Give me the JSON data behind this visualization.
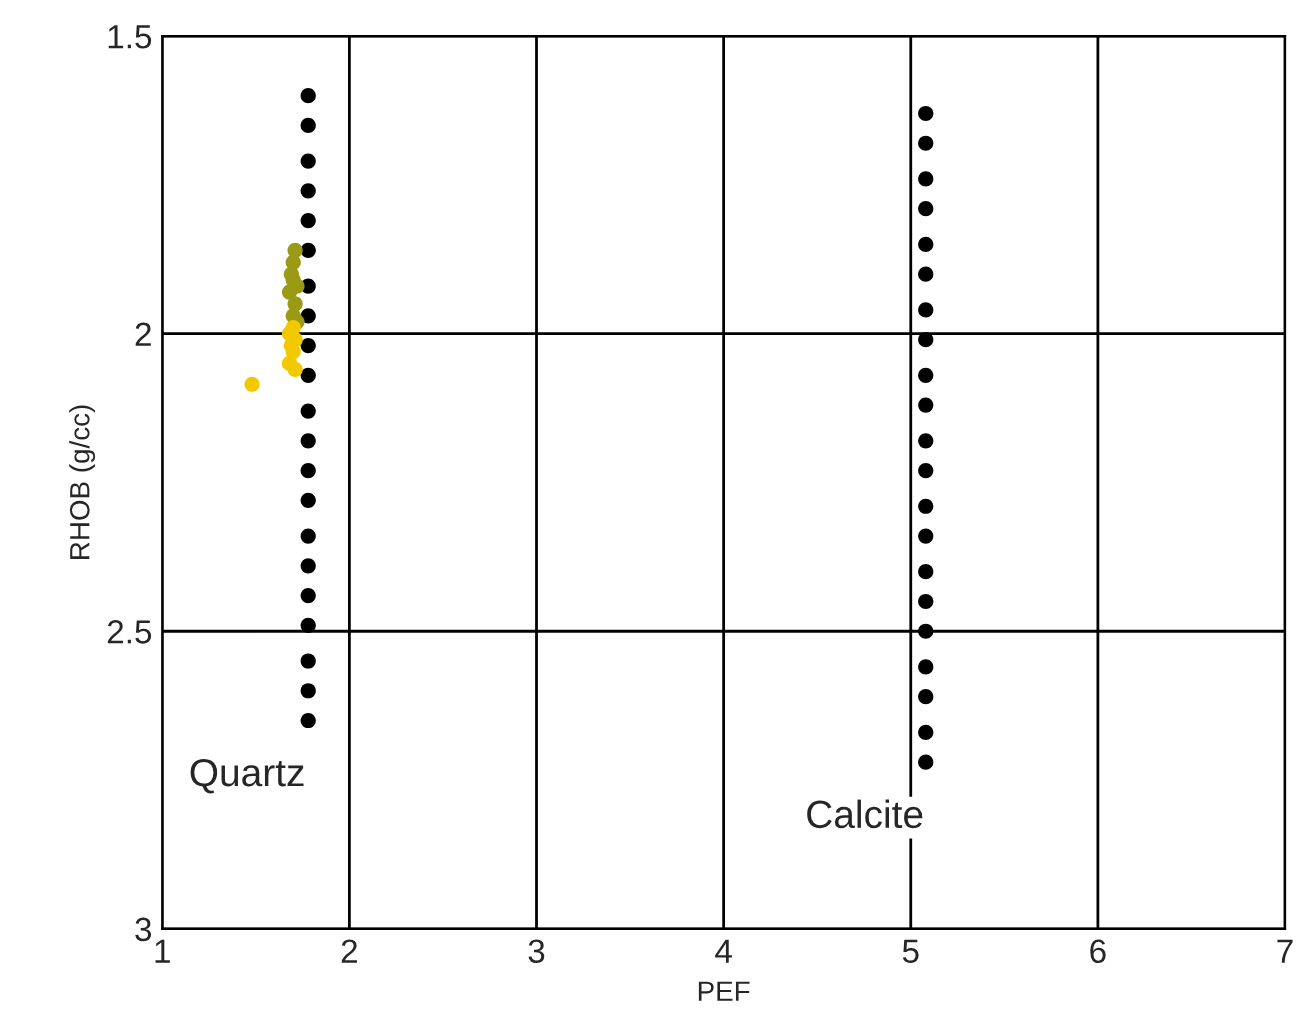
{
  "chart_data": {
    "type": "scatter",
    "xlabel": "PEF",
    "ylabel": "RHOB (g/cc)",
    "xlim": [
      1,
      7
    ],
    "ylim": [
      3,
      1.5
    ],
    "xticks": [
      1,
      2,
      3,
      4,
      5,
      6,
      7
    ],
    "yticks": [
      1.5,
      2,
      2.5,
      3
    ],
    "grid": true,
    "marker": "circle",
    "series": [
      {
        "color": "#000000",
        "x": [
          1.78,
          1.78,
          1.78,
          1.78,
          1.78,
          1.78,
          1.78,
          1.78,
          1.78,
          1.78,
          1.78,
          1.78,
          1.78,
          1.78,
          1.78,
          1.78,
          1.78,
          1.78,
          1.78,
          1.78,
          1.78
        ],
        "values": [
          1.6,
          1.65,
          1.71,
          1.76,
          1.81,
          1.86,
          1.92,
          1.97,
          2.02,
          2.07,
          2.13,
          2.18,
          2.23,
          2.28,
          2.34,
          2.39,
          2.44,
          2.49,
          2.55,
          2.6,
          2.65
        ]
      },
      {
        "color": "#000000",
        "x": [
          5.08,
          5.08,
          5.08,
          5.08,
          5.08,
          5.08,
          5.08,
          5.08,
          5.08,
          5.08,
          5.08,
          5.08,
          5.08,
          5.08,
          5.08,
          5.08,
          5.08,
          5.08,
          5.08,
          5.08,
          5.08
        ],
        "values": [
          1.63,
          1.68,
          1.74,
          1.79,
          1.85,
          1.9,
          1.96,
          2.01,
          2.07,
          2.12,
          2.18,
          2.23,
          2.29,
          2.34,
          2.4,
          2.45,
          2.5,
          2.56,
          2.61,
          2.67,
          2.72
        ]
      },
      {
        "color": "#9a9a14",
        "x": [
          1.71,
          1.7,
          1.69,
          1.7,
          1.72,
          1.68,
          1.71,
          1.7,
          1.72
        ],
        "values": [
          1.86,
          1.88,
          1.9,
          1.91,
          1.92,
          1.93,
          1.95,
          1.97,
          1.98
        ]
      },
      {
        "color": "#f2c800",
        "x": [
          1.7,
          1.68,
          1.71,
          1.69,
          1.7,
          1.68,
          1.71,
          1.48
        ],
        "values": [
          1.99,
          2.0,
          2.01,
          2.02,
          2.03,
          2.05,
          2.06,
          2.085
        ]
      }
    ],
    "annotations": [
      "Quartz",
      "Calcite"
    ]
  }
}
